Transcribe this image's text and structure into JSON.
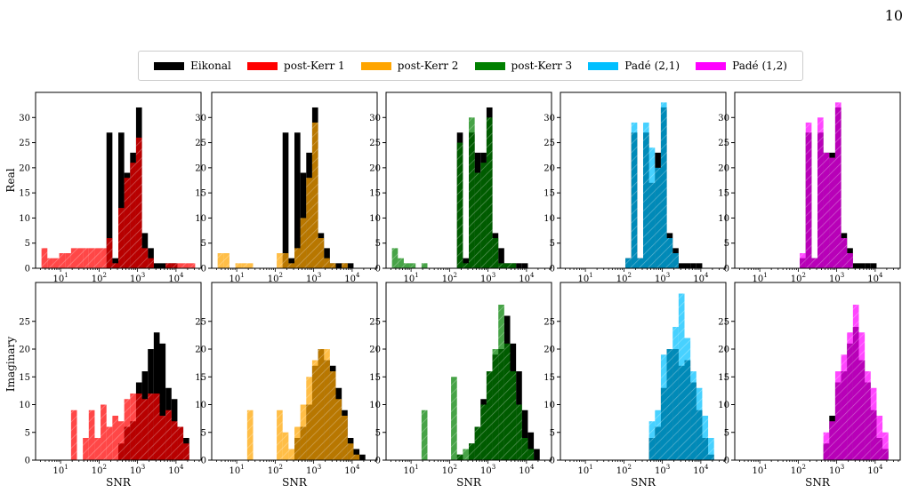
{
  "page_number": "10",
  "legend": [
    {
      "label": "Eikonal",
      "color": "#000000"
    },
    {
      "label": "post-Kerr 1",
      "color": "#ff0000"
    },
    {
      "label": "post-Kerr 2",
      "color": "#ffa500"
    },
    {
      "label": "post-Kerr 3",
      "color": "#008000"
    },
    {
      "label": "Padé (2,1)",
      "color": "#00bfff"
    },
    {
      "label": "Padé (1,2)",
      "color": "#ff00ff"
    }
  ],
  "row_labels": [
    "Real",
    "Imaginary"
  ],
  "xlabel": "SNR",
  "chart_data": [
    {
      "type": "bar",
      "row": "Real",
      "series": [
        {
          "name": "Eikonal",
          "color": "#000000",
          "values": [
            0,
            0,
            0,
            0,
            0,
            0,
            0,
            0,
            0,
            0,
            0,
            0,
            27,
            2,
            27,
            19,
            23,
            32,
            7,
            4,
            1,
            1,
            1,
            1,
            0,
            0,
            0,
            0
          ]
        },
        {
          "name": "post-Kerr 1",
          "color": "#ff0000",
          "values": [
            0,
            4,
            2,
            2,
            3,
            3,
            4,
            4,
            4,
            4,
            4,
            4,
            6,
            1,
            12,
            18,
            21,
            26,
            4,
            2,
            0,
            0,
            1,
            1,
            1,
            1,
            1,
            0
          ]
        }
      ],
      "x_log_range": [
        0.35,
        4.65
      ],
      "ylim": [
        0,
        35
      ],
      "yticks": [
        0,
        5,
        10,
        15,
        20,
        25,
        30
      ],
      "xtick_labels": [
        "10^1",
        "10^2",
        "10^3",
        "10^4"
      ],
      "grid": false
    },
    {
      "type": "bar",
      "row": "Real",
      "series": [
        {
          "name": "Eikonal",
          "color": "#000000",
          "values": [
            0,
            0,
            0,
            0,
            0,
            0,
            0,
            0,
            0,
            0,
            0,
            0,
            27,
            2,
            27,
            19,
            23,
            32,
            7,
            4,
            1,
            1,
            1,
            1,
            0,
            0,
            0,
            0
          ]
        },
        {
          "name": "post-Kerr 2",
          "color": "#ffa500",
          "values": [
            0,
            3,
            3,
            0,
            1,
            1,
            1,
            0,
            0,
            0,
            0,
            3,
            3,
            1,
            4,
            10,
            18,
            29,
            6,
            2,
            1,
            0,
            1,
            0,
            0,
            0,
            0,
            0
          ]
        }
      ],
      "x_log_range": [
        0.35,
        4.65
      ],
      "ylim": [
        0,
        35
      ],
      "yticks": [
        0,
        5,
        10,
        15,
        20,
        25,
        30
      ],
      "xtick_labels": [
        "10^1",
        "10^2",
        "10^3",
        "10^4"
      ],
      "grid": false
    },
    {
      "type": "bar",
      "row": "Real",
      "series": [
        {
          "name": "Eikonal",
          "color": "#000000",
          "values": [
            0,
            0,
            0,
            0,
            0,
            0,
            0,
            0,
            0,
            0,
            0,
            0,
            27,
            2,
            27,
            23,
            23,
            32,
            7,
            4,
            1,
            1,
            1,
            1,
            0,
            0,
            0,
            0
          ]
        },
        {
          "name": "post-Kerr 3",
          "color": "#008000",
          "values": [
            0,
            4,
            2,
            1,
            1,
            0,
            1,
            0,
            0,
            0,
            0,
            0,
            25,
            1,
            30,
            19,
            21,
            30,
            6,
            1,
            1,
            1,
            0,
            0,
            0,
            0,
            0,
            0
          ]
        }
      ],
      "x_log_range": [
        0.35,
        4.65
      ],
      "ylim": [
        0,
        35
      ],
      "yticks": [
        0,
        5,
        10,
        15,
        20,
        25,
        30
      ],
      "xtick_labels": [
        "10^1",
        "10^2",
        "10^3",
        "10^4"
      ],
      "grid": false
    },
    {
      "type": "bar",
      "row": "Real",
      "series": [
        {
          "name": "Eikonal",
          "color": "#000000",
          "values": [
            0,
            0,
            0,
            0,
            0,
            0,
            0,
            0,
            0,
            0,
            0,
            2,
            27,
            2,
            27,
            17,
            23,
            32,
            7,
            4,
            1,
            1,
            1,
            1,
            0,
            0,
            0,
            0
          ]
        },
        {
          "name": "Padé (2,1)",
          "color": "#00bfff",
          "values": [
            0,
            0,
            0,
            0,
            0,
            0,
            0,
            0,
            0,
            0,
            0,
            2,
            29,
            2,
            29,
            24,
            20,
            33,
            6,
            3,
            0,
            0,
            0,
            0,
            0,
            0,
            0,
            0
          ]
        }
      ],
      "x_log_range": [
        0.35,
        4.65
      ],
      "ylim": [
        0,
        35
      ],
      "yticks": [
        0,
        5,
        10,
        15,
        20,
        25,
        30
      ],
      "xtick_labels": [
        "10^1",
        "10^2",
        "10^3",
        "10^4"
      ],
      "grid": false
    },
    {
      "type": "bar",
      "row": "Real",
      "series": [
        {
          "name": "Eikonal",
          "color": "#000000",
          "values": [
            0,
            0,
            0,
            0,
            0,
            0,
            0,
            0,
            0,
            0,
            0,
            2,
            27,
            2,
            27,
            23,
            23,
            32,
            7,
            4,
            1,
            1,
            1,
            1,
            0,
            0,
            0,
            0
          ]
        },
        {
          "name": "Padé (1,2)",
          "color": "#ff00ff",
          "values": [
            0,
            0,
            0,
            0,
            0,
            0,
            0,
            0,
            0,
            0,
            0,
            3,
            29,
            2,
            30,
            23,
            22,
            33,
            6,
            3,
            0,
            0,
            0,
            0,
            0,
            0,
            0,
            0
          ]
        }
      ],
      "x_log_range": [
        0.35,
        4.65
      ],
      "ylim": [
        0,
        35
      ],
      "yticks": [
        0,
        5,
        10,
        15,
        20,
        25,
        30
      ],
      "xtick_labels": [
        "10^1",
        "10^2",
        "10^3",
        "10^4"
      ],
      "grid": false
    },
    {
      "type": "bar",
      "row": "Imaginary",
      "series": [
        {
          "name": "Eikonal",
          "color": "#000000",
          "values": [
            0,
            0,
            0,
            0,
            0,
            0,
            0,
            0,
            0,
            0,
            0,
            0,
            0,
            0,
            3,
            6,
            7,
            14,
            16,
            20,
            23,
            21,
            13,
            11,
            6,
            4,
            0,
            0
          ]
        },
        {
          "name": "post-Kerr 1",
          "color": "#ff0000",
          "values": [
            0,
            0,
            0,
            0,
            0,
            0,
            9,
            0,
            4,
            9,
            4,
            10,
            6,
            8,
            7,
            11,
            12,
            12,
            11,
            12,
            12,
            8,
            9,
            7,
            6,
            3,
            0,
            0
          ]
        }
      ],
      "x_log_range": [
        0.35,
        4.65
      ],
      "ylim": [
        0,
        32
      ],
      "yticks": [
        0,
        5,
        10,
        15,
        20,
        25
      ],
      "xtick_labels": [
        "10^1",
        "10^2",
        "10^3",
        "10^4"
      ],
      "grid": false
    },
    {
      "type": "bar",
      "row": "Imaginary",
      "series": [
        {
          "name": "Eikonal",
          "color": "#000000",
          "values": [
            0,
            0,
            0,
            0,
            0,
            0,
            0,
            0,
            0,
            0,
            0,
            0,
            0,
            0,
            4,
            6,
            10,
            17,
            20,
            18,
            17,
            13,
            9,
            4,
            2,
            1,
            0,
            0
          ]
        },
        {
          "name": "post-Kerr 2",
          "color": "#ffa500",
          "values": [
            0,
            0,
            0,
            0,
            0,
            0,
            9,
            0,
            0,
            0,
            0,
            9,
            5,
            2,
            6,
            10,
            15,
            18,
            20,
            20,
            16,
            11,
            8,
            3,
            1,
            0,
            0,
            0
          ]
        }
      ],
      "x_log_range": [
        0.35,
        4.65
      ],
      "ylim": [
        0,
        32
      ],
      "yticks": [
        0,
        5,
        10,
        15,
        20,
        25
      ],
      "xtick_labels": [
        "10^1",
        "10^2",
        "10^3",
        "10^4"
      ],
      "grid": false
    },
    {
      "type": "bar",
      "row": "Imaginary",
      "series": [
        {
          "name": "Eikonal",
          "color": "#000000",
          "values": [
            0,
            0,
            0,
            0,
            0,
            0,
            0,
            0,
            0,
            0,
            0,
            0,
            1,
            0,
            3,
            6,
            11,
            16,
            19,
            20,
            26,
            21,
            16,
            9,
            5,
            2,
            0,
            0
          ]
        },
        {
          "name": "post-Kerr 3",
          "color": "#008000",
          "values": [
            0,
            0,
            0,
            0,
            0,
            0,
            9,
            0,
            0,
            0,
            0,
            15,
            1,
            2,
            3,
            6,
            10,
            16,
            20,
            28,
            21,
            16,
            10,
            4,
            2,
            0,
            0,
            0
          ]
        }
      ],
      "x_log_range": [
        0.35,
        4.65
      ],
      "ylim": [
        0,
        32
      ],
      "yticks": [
        0,
        5,
        10,
        15,
        20,
        25
      ],
      "xtick_labels": [
        "10^1",
        "10^2",
        "10^3",
        "10^4"
      ],
      "grid": false
    },
    {
      "type": "bar",
      "row": "Imaginary",
      "series": [
        {
          "name": "Eikonal",
          "color": "#000000",
          "values": [
            0,
            0,
            0,
            0,
            0,
            0,
            0,
            0,
            0,
            0,
            0,
            0,
            0,
            0,
            0,
            4,
            6,
            13,
            20,
            20,
            17,
            18,
            14,
            9,
            4,
            1,
            0,
            0
          ]
        },
        {
          "name": "Padé (2,1)",
          "color": "#00bfff",
          "values": [
            0,
            0,
            0,
            0,
            0,
            0,
            0,
            0,
            0,
            0,
            0,
            0,
            0,
            0,
            0,
            7,
            9,
            19,
            20,
            24,
            30,
            22,
            16,
            13,
            8,
            4,
            0,
            0
          ]
        }
      ],
      "x_log_range": [
        0.35,
        4.65
      ],
      "ylim": [
        0,
        32
      ],
      "yticks": [
        0,
        5,
        10,
        15,
        20,
        25
      ],
      "xtick_labels": [
        "10^1",
        "10^2",
        "10^3",
        "10^4"
      ],
      "grid": false
    },
    {
      "type": "bar",
      "row": "Imaginary",
      "series": [
        {
          "name": "Eikonal",
          "color": "#000000",
          "values": [
            0,
            0,
            0,
            0,
            0,
            0,
            0,
            0,
            0,
            0,
            0,
            0,
            0,
            0,
            0,
            3,
            8,
            14,
            16,
            21,
            24,
            18,
            14,
            9,
            4,
            2,
            0,
            0
          ]
        },
        {
          "name": "Padé (1,2)",
          "color": "#ff00ff",
          "values": [
            0,
            0,
            0,
            0,
            0,
            0,
            0,
            0,
            0,
            0,
            0,
            0,
            0,
            0,
            0,
            5,
            7,
            16,
            19,
            23,
            28,
            23,
            16,
            13,
            8,
            5,
            0,
            0
          ]
        }
      ],
      "x_log_range": [
        0.35,
        4.65
      ],
      "ylim": [
        0,
        32
      ],
      "yticks": [
        0,
        5,
        10,
        15,
        20,
        25
      ],
      "xtick_labels": [
        "10^1",
        "10^2",
        "10^3",
        "10^4"
      ],
      "grid": false
    }
  ]
}
